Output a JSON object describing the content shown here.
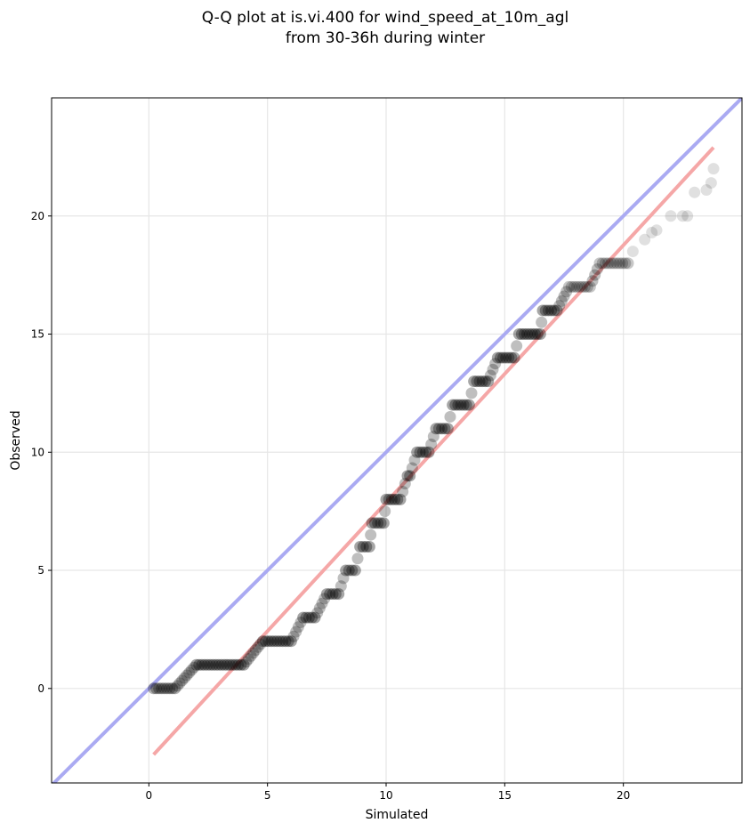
{
  "chart_data": {
    "type": "scatter",
    "title_lines": [
      "Q-Q plot at is.vi.400 for wind_speed_at_10m_agl",
      "from 30-36h during winter"
    ],
    "xlabel": "Simulated",
    "ylabel": "Observed",
    "xlim": [
      -4.1,
      25.0
    ],
    "ylim": [
      -4.0,
      25.0
    ],
    "xticks": [
      0,
      5,
      10,
      15,
      20
    ],
    "yticks": [
      0,
      5,
      10,
      15,
      20
    ],
    "grid": true,
    "reference_lines": [
      {
        "kind": "identity",
        "color": "#aaaaf2",
        "x": [
          -4.1,
          25.0
        ],
        "y": [
          -4.1,
          25.0
        ]
      },
      {
        "kind": "fit",
        "color": "#f5a7a7",
        "x": [
          0.2,
          23.8
        ],
        "y": [
          -2.8,
          22.9
        ]
      }
    ],
    "quantile_steps": [
      {
        "observed": 0,
        "simulated_from": 0.2,
        "simulated_to": 1.1
      },
      {
        "observed": 1,
        "simulated_from": 2.0,
        "simulated_to": 4.0
      },
      {
        "observed": 2,
        "simulated_from": 4.8,
        "simulated_to": 6.0
      },
      {
        "observed": 3,
        "simulated_from": 6.5,
        "simulated_to": 7.0
      },
      {
        "observed": 4,
        "simulated_from": 7.5,
        "simulated_to": 8.0
      },
      {
        "observed": 5,
        "simulated_from": 8.3,
        "simulated_to": 8.7
      },
      {
        "observed": 6,
        "simulated_from": 8.9,
        "simulated_to": 9.3
      },
      {
        "observed": 7,
        "simulated_from": 9.4,
        "simulated_to": 9.9
      },
      {
        "observed": 8,
        "simulated_from": 10.0,
        "simulated_to": 10.6
      },
      {
        "observed": 9,
        "simulated_from": 10.9,
        "simulated_to": 11.0
      },
      {
        "observed": 10,
        "simulated_from": 11.3,
        "simulated_to": 11.8
      },
      {
        "observed": 11,
        "simulated_from": 12.1,
        "simulated_to": 12.6
      },
      {
        "observed": 12,
        "simulated_from": 12.8,
        "simulated_to": 13.5
      },
      {
        "observed": 13,
        "simulated_from": 13.7,
        "simulated_to": 14.3
      },
      {
        "observed": 14,
        "simulated_from": 14.7,
        "simulated_to": 15.4
      },
      {
        "observed": 15,
        "simulated_from": 15.6,
        "simulated_to": 16.5
      },
      {
        "observed": 16,
        "simulated_from": 16.6,
        "simulated_to": 17.2
      },
      {
        "observed": 17,
        "simulated_from": 17.7,
        "simulated_to": 18.6
      },
      {
        "observed": 18,
        "simulated_from": 19.0,
        "simulated_to": 20.2
      }
    ],
    "tail_points": [
      {
        "x": 20.4,
        "y": 18.5
      },
      {
        "x": 20.9,
        "y": 19.0
      },
      {
        "x": 21.2,
        "y": 19.3
      },
      {
        "x": 21.4,
        "y": 19.4
      },
      {
        "x": 22.0,
        "y": 20.0
      },
      {
        "x": 22.5,
        "y": 20.0
      },
      {
        "x": 22.7,
        "y": 20.0
      },
      {
        "x": 23.0,
        "y": 21.0
      },
      {
        "x": 23.5,
        "y": 21.1
      },
      {
        "x": 23.7,
        "y": 21.4
      },
      {
        "x": 23.8,
        "y": 22.0
      }
    ]
  }
}
